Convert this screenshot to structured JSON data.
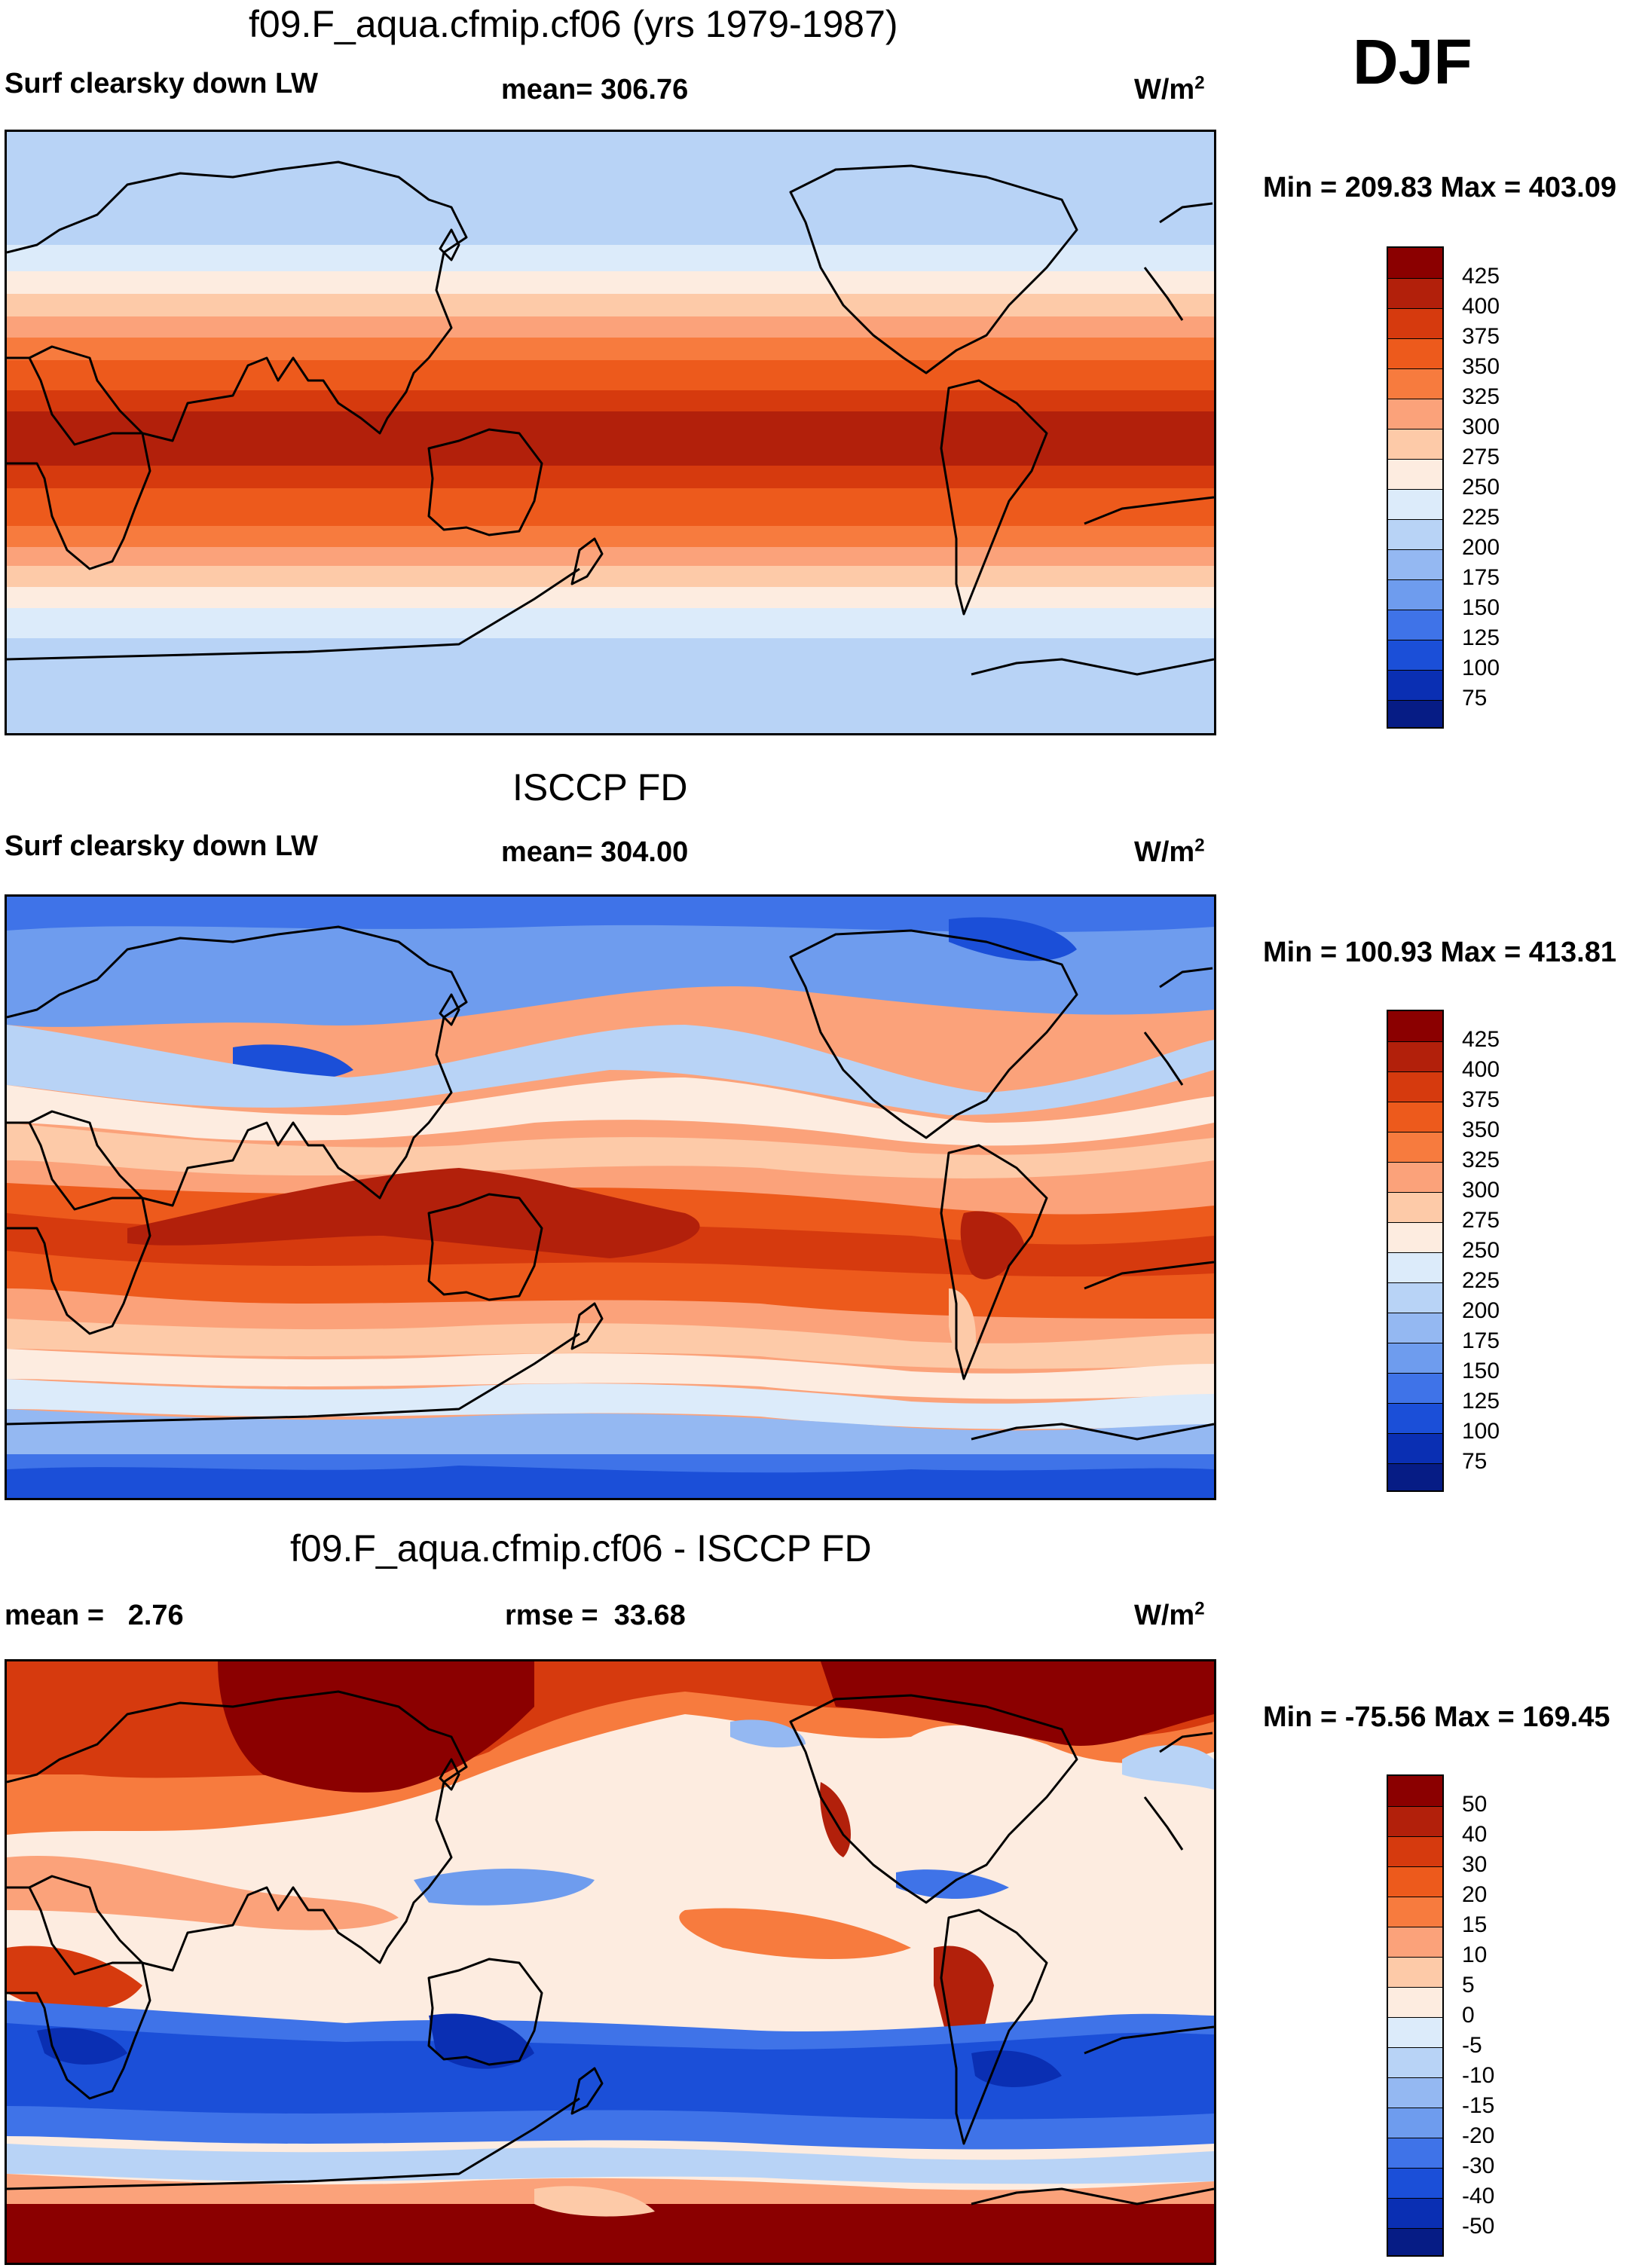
{
  "season": "DJF",
  "panels": [
    {
      "id": "model",
      "title": "f09.F_aqua.cfmip.cf06 (yrs 1979-1987)",
      "left_label": "Surf clearsky down LW",
      "center_label": "mean= 306.76",
      "units": "W/m",
      "units_sup": "2",
      "minmax": "Min = 209.83 Max = 403.09",
      "colorbar_labels": [
        "425",
        "400",
        "375",
        "350",
        "325",
        "300",
        "275",
        "250",
        "225",
        "200",
        "175",
        "150",
        "125",
        "100",
        "75"
      ],
      "colorbar_colors": [
        "#8b0000",
        "#b2200b",
        "#d63a0e",
        "#ed5a1c",
        "#f77b3e",
        "#fba27a",
        "#fdcaa8",
        "#fdece0",
        "#dcebfa",
        "#b8d3f6",
        "#94b8f2",
        "#6e9cee",
        "#3f73e8",
        "#1b4fd8",
        "#0a2fb3",
        "#061c85"
      ]
    },
    {
      "id": "obs",
      "title": "ISCCP FD",
      "left_label": "Surf clearsky down LW",
      "center_label": "mean= 304.00",
      "units": "W/m",
      "units_sup": "2",
      "minmax": "Min = 100.93 Max = 413.81",
      "colorbar_labels": [
        "425",
        "400",
        "375",
        "350",
        "325",
        "300",
        "275",
        "250",
        "225",
        "200",
        "175",
        "150",
        "125",
        "100",
        "75"
      ],
      "colorbar_colors": [
        "#8b0000",
        "#b2200b",
        "#d63a0e",
        "#ed5a1c",
        "#f77b3e",
        "#fba27a",
        "#fdcaa8",
        "#fdece0",
        "#dcebfa",
        "#b8d3f6",
        "#94b8f2",
        "#6e9cee",
        "#3f73e8",
        "#1b4fd8",
        "#0a2fb3",
        "#061c85"
      ]
    },
    {
      "id": "diff",
      "title": "f09.F_aqua.cfmip.cf06 - ISCCP FD",
      "left_label": "mean =   2.76",
      "center_label": "rmse =  33.68",
      "units": "W/m",
      "units_sup": "2",
      "minmax": "Min = -75.56 Max = 169.45",
      "colorbar_labels": [
        "50",
        "40",
        "30",
        "20",
        "15",
        "10",
        "5",
        "0",
        "-5",
        "-10",
        "-15",
        "-20",
        "-30",
        "-40",
        "-50"
      ],
      "colorbar_colors": [
        "#8b0000",
        "#b2200b",
        "#d63a0e",
        "#ed5a1c",
        "#f77b3e",
        "#fba27a",
        "#fdcaa8",
        "#fdece0",
        "#dcebfa",
        "#b8d3f6",
        "#94b8f2",
        "#6e9cee",
        "#3f73e8",
        "#1b4fd8",
        "#0a2fb3",
        "#061c85"
      ]
    }
  ]
}
